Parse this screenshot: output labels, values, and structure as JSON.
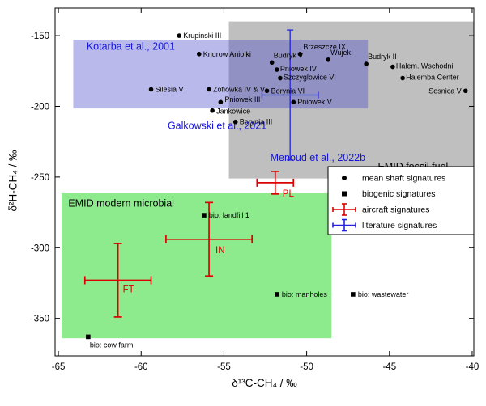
{
  "chart_data": {
    "type": "scatter",
    "title": "",
    "xlabel": "δ¹³C-CH₄ / ‰",
    "ylabel": "δ²H-CH₄ / ‰",
    "xlim": [
      -65.2,
      -39.9
    ],
    "ylim": [
      -376.5,
      -130.5
    ],
    "xticks": [
      -65,
      -60,
      -55,
      -50,
      -45,
      -40
    ],
    "yticks": [
      -150,
      -200,
      -250,
      -300,
      -350
    ],
    "grid": false,
    "legend_position": "inside lower right",
    "regions": [
      {
        "id": "emid-fossil-fuel",
        "x": [
          -54.7,
          -39.9
        ],
        "y": [
          -251,
          -140
        ],
        "color": "rgba(128,128,128,0.5)",
        "label": "EMID fossil fuel",
        "label_pos": [
          -45.7,
          -245
        ],
        "label_color": "#000000"
      },
      {
        "id": "emid-modern-microbial",
        "x": [
          -64.8,
          -48.5
        ],
        "y": [
          -364,
          -261.5
        ],
        "color": "#8deb8d",
        "label": "EMID modern microbial",
        "label_pos": [
          -64.4,
          -271
        ],
        "label_color": "#000000"
      },
      {
        "id": "kotarba-2001",
        "x": [
          -64.1,
          -46.3
        ],
        "y": [
          -201.5,
          -153
        ],
        "color": "rgba(70,70,205,0.38)",
        "label": "Kotarba et al., 2001",
        "label_pos": [
          -63.3,
          -160
        ],
        "label_color": "#1515dd"
      }
    ],
    "annotations": [
      {
        "id": "galkowski-2021",
        "text": "Galkowski et al., 2021",
        "pos": [
          -58.4,
          -216
        ],
        "color": "#1515dd"
      },
      {
        "id": "menoud-2022b",
        "text": "Menoud et al., 2022b",
        "pos": [
          -52.2,
          -238.5
        ],
        "color": "#1515dd"
      }
    ],
    "series": {
      "shaft": {
        "name": "mean shaft signatures",
        "marker": "circle",
        "color": "#000000",
        "points": [
          {
            "label": "Krupinski III",
            "x": -57.7,
            "y": -150,
            "dx": 5,
            "dy": 3,
            "anchor": "start"
          },
          {
            "label": "Knurow Aniolki",
            "x": -56.5,
            "y": -163,
            "dx": 5,
            "dy": 3,
            "anchor": "start"
          },
          {
            "label": "Brzeszcze IX",
            "x": -50.4,
            "y": -163,
            "dx": 4,
            "dy": -6,
            "anchor": "start"
          },
          {
            "label": "Budryk V",
            "x": -52.1,
            "y": -169,
            "dx": 2,
            "dy": -6,
            "anchor": "start"
          },
          {
            "label": "Wujek",
            "x": -48.7,
            "y": -167,
            "dx": 3,
            "dy": -6,
            "anchor": "start"
          },
          {
            "label": "Budryk II",
            "x": -46.4,
            "y": -170,
            "dx": 2,
            "dy": -6,
            "anchor": "start"
          },
          {
            "label": "Pniowek IV",
            "x": -51.8,
            "y": -174,
            "dx": 4,
            "dy": 2,
            "anchor": "start"
          },
          {
            "label": "Halem. Wschodni",
            "x": -44.8,
            "y": -172,
            "dx": 4,
            "dy": 2,
            "anchor": "start"
          },
          {
            "label": "Szczyglowice VI",
            "x": -51.6,
            "y": -180,
            "dx": 4,
            "dy": 2,
            "anchor": "start"
          },
          {
            "label": "Halemba Center",
            "x": -44.2,
            "y": -180,
            "dx": 4,
            "dy": 2,
            "anchor": "start"
          },
          {
            "label": "Silesia V",
            "x": -59.4,
            "y": -188,
            "dx": 5,
            "dy": 3,
            "anchor": "start"
          },
          {
            "label": "Zofiowka IV & V",
            "x": -55.9,
            "y": -188,
            "dx": 5,
            "dy": 3,
            "anchor": "start"
          },
          {
            "label": "Borynia VI",
            "x": -52.4,
            "y": -189,
            "dx": 5,
            "dy": 3,
            "anchor": "start"
          },
          {
            "label": "Sosnica V",
            "x": -40.4,
            "y": -189,
            "dx": -5,
            "dy": 3,
            "anchor": "end"
          },
          {
            "label": "Pniowek III",
            "x": -55.2,
            "y": -197,
            "dx": 5,
            "dy": 0,
            "anchor": "start"
          },
          {
            "label": "Pniowek V",
            "x": -50.8,
            "y": -197,
            "dx": 5,
            "dy": 3,
            "anchor": "start"
          },
          {
            "label": "Jankowice",
            "x": -55.7,
            "y": -203,
            "dx": 5,
            "dy": 4,
            "anchor": "start"
          },
          {
            "label": "Borynia III",
            "x": -54.3,
            "y": -211,
            "dx": 5,
            "dy": 3,
            "anchor": "start"
          }
        ]
      },
      "biogenic": {
        "name": "biogenic signatures",
        "marker": "square",
        "color": "#000000",
        "points": [
          {
            "label": "bio: landfill 1",
            "x": -56.2,
            "y": -277,
            "dx": 6,
            "dy": 3,
            "anchor": "start"
          },
          {
            "label": "bio: manholes",
            "x": -51.8,
            "y": -333,
            "dx": 6,
            "dy": 3,
            "anchor": "start"
          },
          {
            "label": "bio: wastewater",
            "x": -47.2,
            "y": -333,
            "dx": 6,
            "dy": 3,
            "anchor": "start"
          },
          {
            "label": "bio: cow farm",
            "x": -63.2,
            "y": -363,
            "dx": 2,
            "dy": 13,
            "anchor": "start"
          }
        ]
      },
      "aircraft": {
        "name": "aircraft signatures",
        "color": "#dd0000",
        "points": [
          {
            "label": "PL",
            "x": -51.9,
            "y": -254,
            "xerr": 1.1,
            "yerr": 8,
            "ldx": 9,
            "ldy": 17
          },
          {
            "label": "IN",
            "x": -55.9,
            "y": -294,
            "xerr": 2.6,
            "yerr": 26,
            "ldx": 8,
            "ldy": 17
          },
          {
            "label": "FT",
            "x": -61.4,
            "y": -323,
            "xerr": 2.0,
            "yerr": 26,
            "ldx": 6,
            "ldy": 15
          }
        ]
      },
      "literature": {
        "name": "literature signatures",
        "color": "#2222dd",
        "points": [
          {
            "label": "",
            "x": -51.0,
            "y": -192,
            "xerr": 1.7,
            "yerr": 46
          }
        ]
      }
    },
    "legend": {
      "items": [
        {
          "symbol": "dot",
          "label": "mean shaft signatures"
        },
        {
          "symbol": "square",
          "label": "biogenic signatures"
        },
        {
          "symbol": "cross-red",
          "label": "aircraft signatures"
        },
        {
          "symbol": "cross-blue",
          "label": "literature signatures"
        }
      ]
    }
  }
}
